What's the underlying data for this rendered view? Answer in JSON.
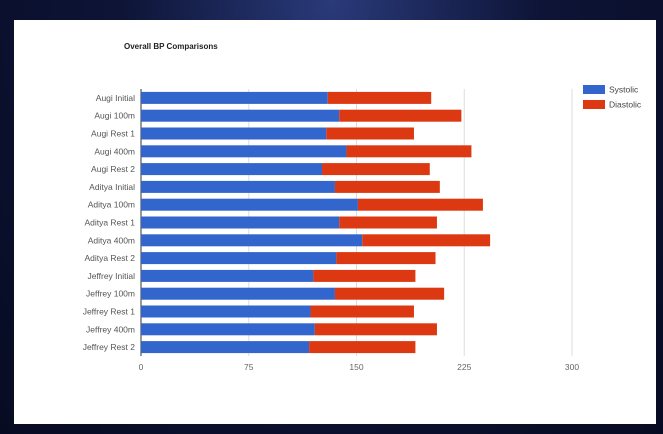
{
  "chart_data": {
    "type": "bar",
    "orientation": "horizontal",
    "stacked": true,
    "title": "Overall BP Comparisons",
    "xlabel": "",
    "ylabel": "",
    "xlim": [
      0,
      300
    ],
    "xticks": [
      "0",
      "75",
      "150",
      "225",
      "300"
    ],
    "grid": true,
    "legend_position": "right",
    "categories": [
      "Augi Initial",
      "Augi 100m",
      "Augi Rest 1",
      "Augi 400m",
      "Augi Rest 2",
      "Aditya Initial",
      "Aditya 100m",
      "Aditya Rest 1",
      "Aditya 400m",
      "Aditya Rest 2",
      "Jeffrey Initial",
      "Jeffrey 100m",
      "Jeffrey Rest 1",
      "Jeffrey 400m",
      "Jeffrey Rest 2"
    ],
    "series": [
      {
        "name": "Systolic",
        "color": "#3366cc",
        "values": [
          130,
          138,
          129,
          143,
          126,
          135,
          151,
          138,
          154,
          136,
          120,
          135,
          118,
          121,
          117
        ]
      },
      {
        "name": "Diastolic",
        "color": "#dc3912",
        "values": [
          72,
          85,
          61,
          87,
          75,
          73,
          87,
          68,
          89,
          69,
          71,
          76,
          72,
          85,
          74
        ]
      }
    ]
  }
}
